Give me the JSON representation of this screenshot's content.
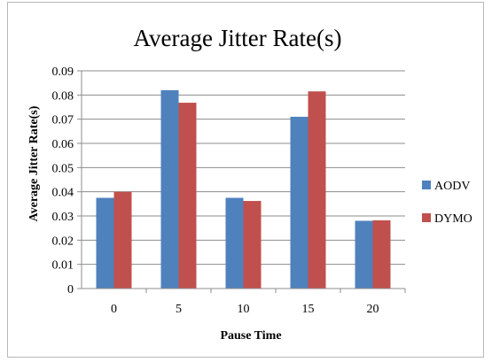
{
  "chart_data": {
    "type": "bar",
    "title": "Average Jitter Rate(s)",
    "xlabel": "Pause Time",
    "ylabel": "Average Jitter Rate(s)",
    "categories": [
      "0",
      "5",
      "10",
      "15",
      "20"
    ],
    "ylim": [
      0,
      0.09
    ],
    "yticks": [
      "0",
      "0.01",
      "0.02",
      "0.03",
      "0.04",
      "0.05",
      "0.06",
      "0.07",
      "0.08",
      "0.09"
    ],
    "grid": true,
    "legend_position": "right",
    "series": [
      {
        "name": "AODV",
        "color": "#4f81bd",
        "values": [
          0.0375,
          0.082,
          0.0375,
          0.071,
          0.028
        ]
      },
      {
        "name": "DYMO",
        "color": "#c0504d",
        "values": [
          0.04,
          0.0768,
          0.0362,
          0.0815,
          0.0282
        ]
      }
    ]
  }
}
